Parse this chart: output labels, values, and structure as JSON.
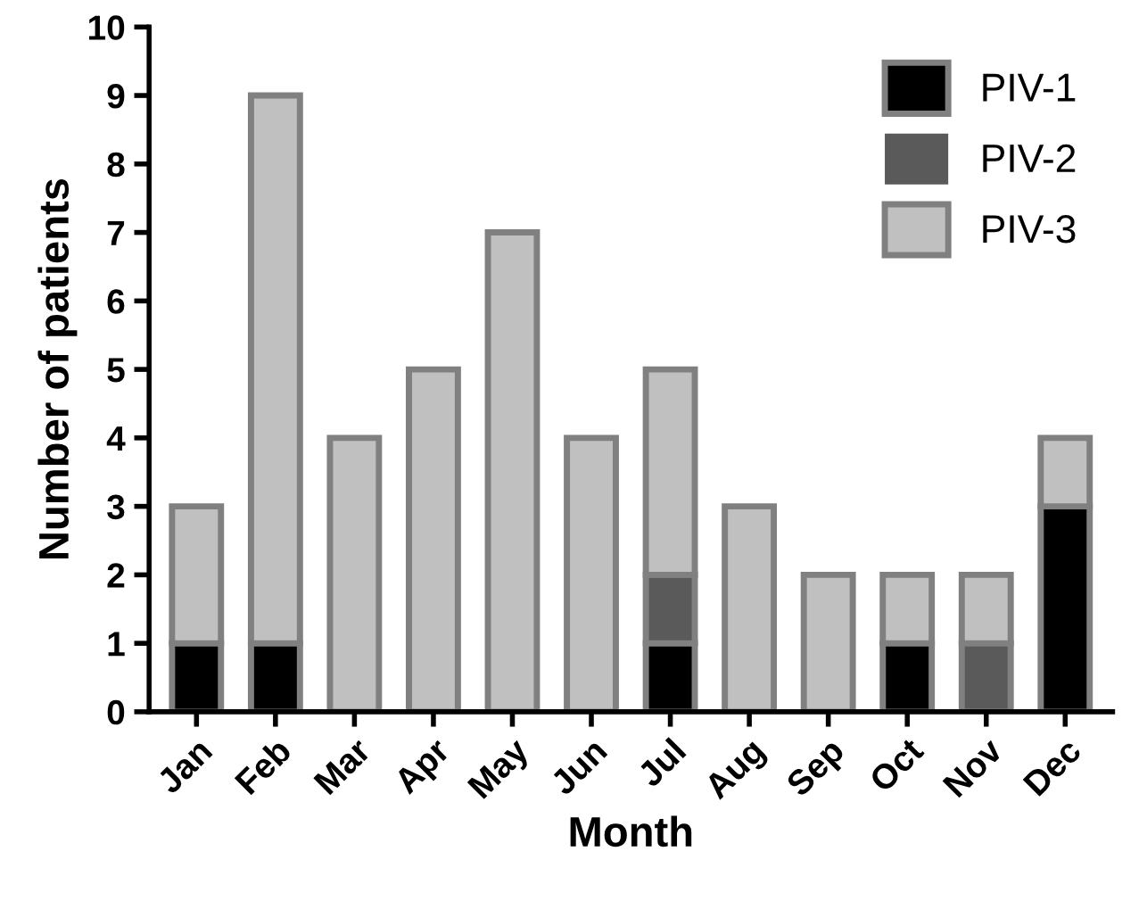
{
  "chart_data": {
    "type": "bar",
    "stacked": true,
    "xlabel": "Month",
    "ylabel": "Number of patients",
    "categories": [
      "Jan",
      "Feb",
      "Mar",
      "Apr",
      "May",
      "Jun",
      "Jul",
      "Aug",
      "Sep",
      "Oct",
      "Nov",
      "Dec"
    ],
    "series": [
      {
        "name": "PIV-1",
        "color": "#000000",
        "values": [
          1,
          1,
          0,
          0,
          0,
          0,
          1,
          0,
          0,
          1,
          0,
          3
        ]
      },
      {
        "name": "PIV-2",
        "color": "#5a5a5a",
        "values": [
          0,
          0,
          0,
          0,
          0,
          0,
          1,
          0,
          0,
          0,
          1,
          0
        ]
      },
      {
        "name": "PIV-3",
        "color": "#c0c0c0",
        "values": [
          2,
          8,
          4,
          5,
          7,
          4,
          3,
          3,
          2,
          1,
          1,
          1
        ]
      }
    ],
    "ylim": [
      0,
      10
    ],
    "yticks": [
      0,
      1,
      2,
      3,
      4,
      5,
      6,
      7,
      8,
      9,
      10
    ],
    "grid": false,
    "legend": "top right"
  }
}
